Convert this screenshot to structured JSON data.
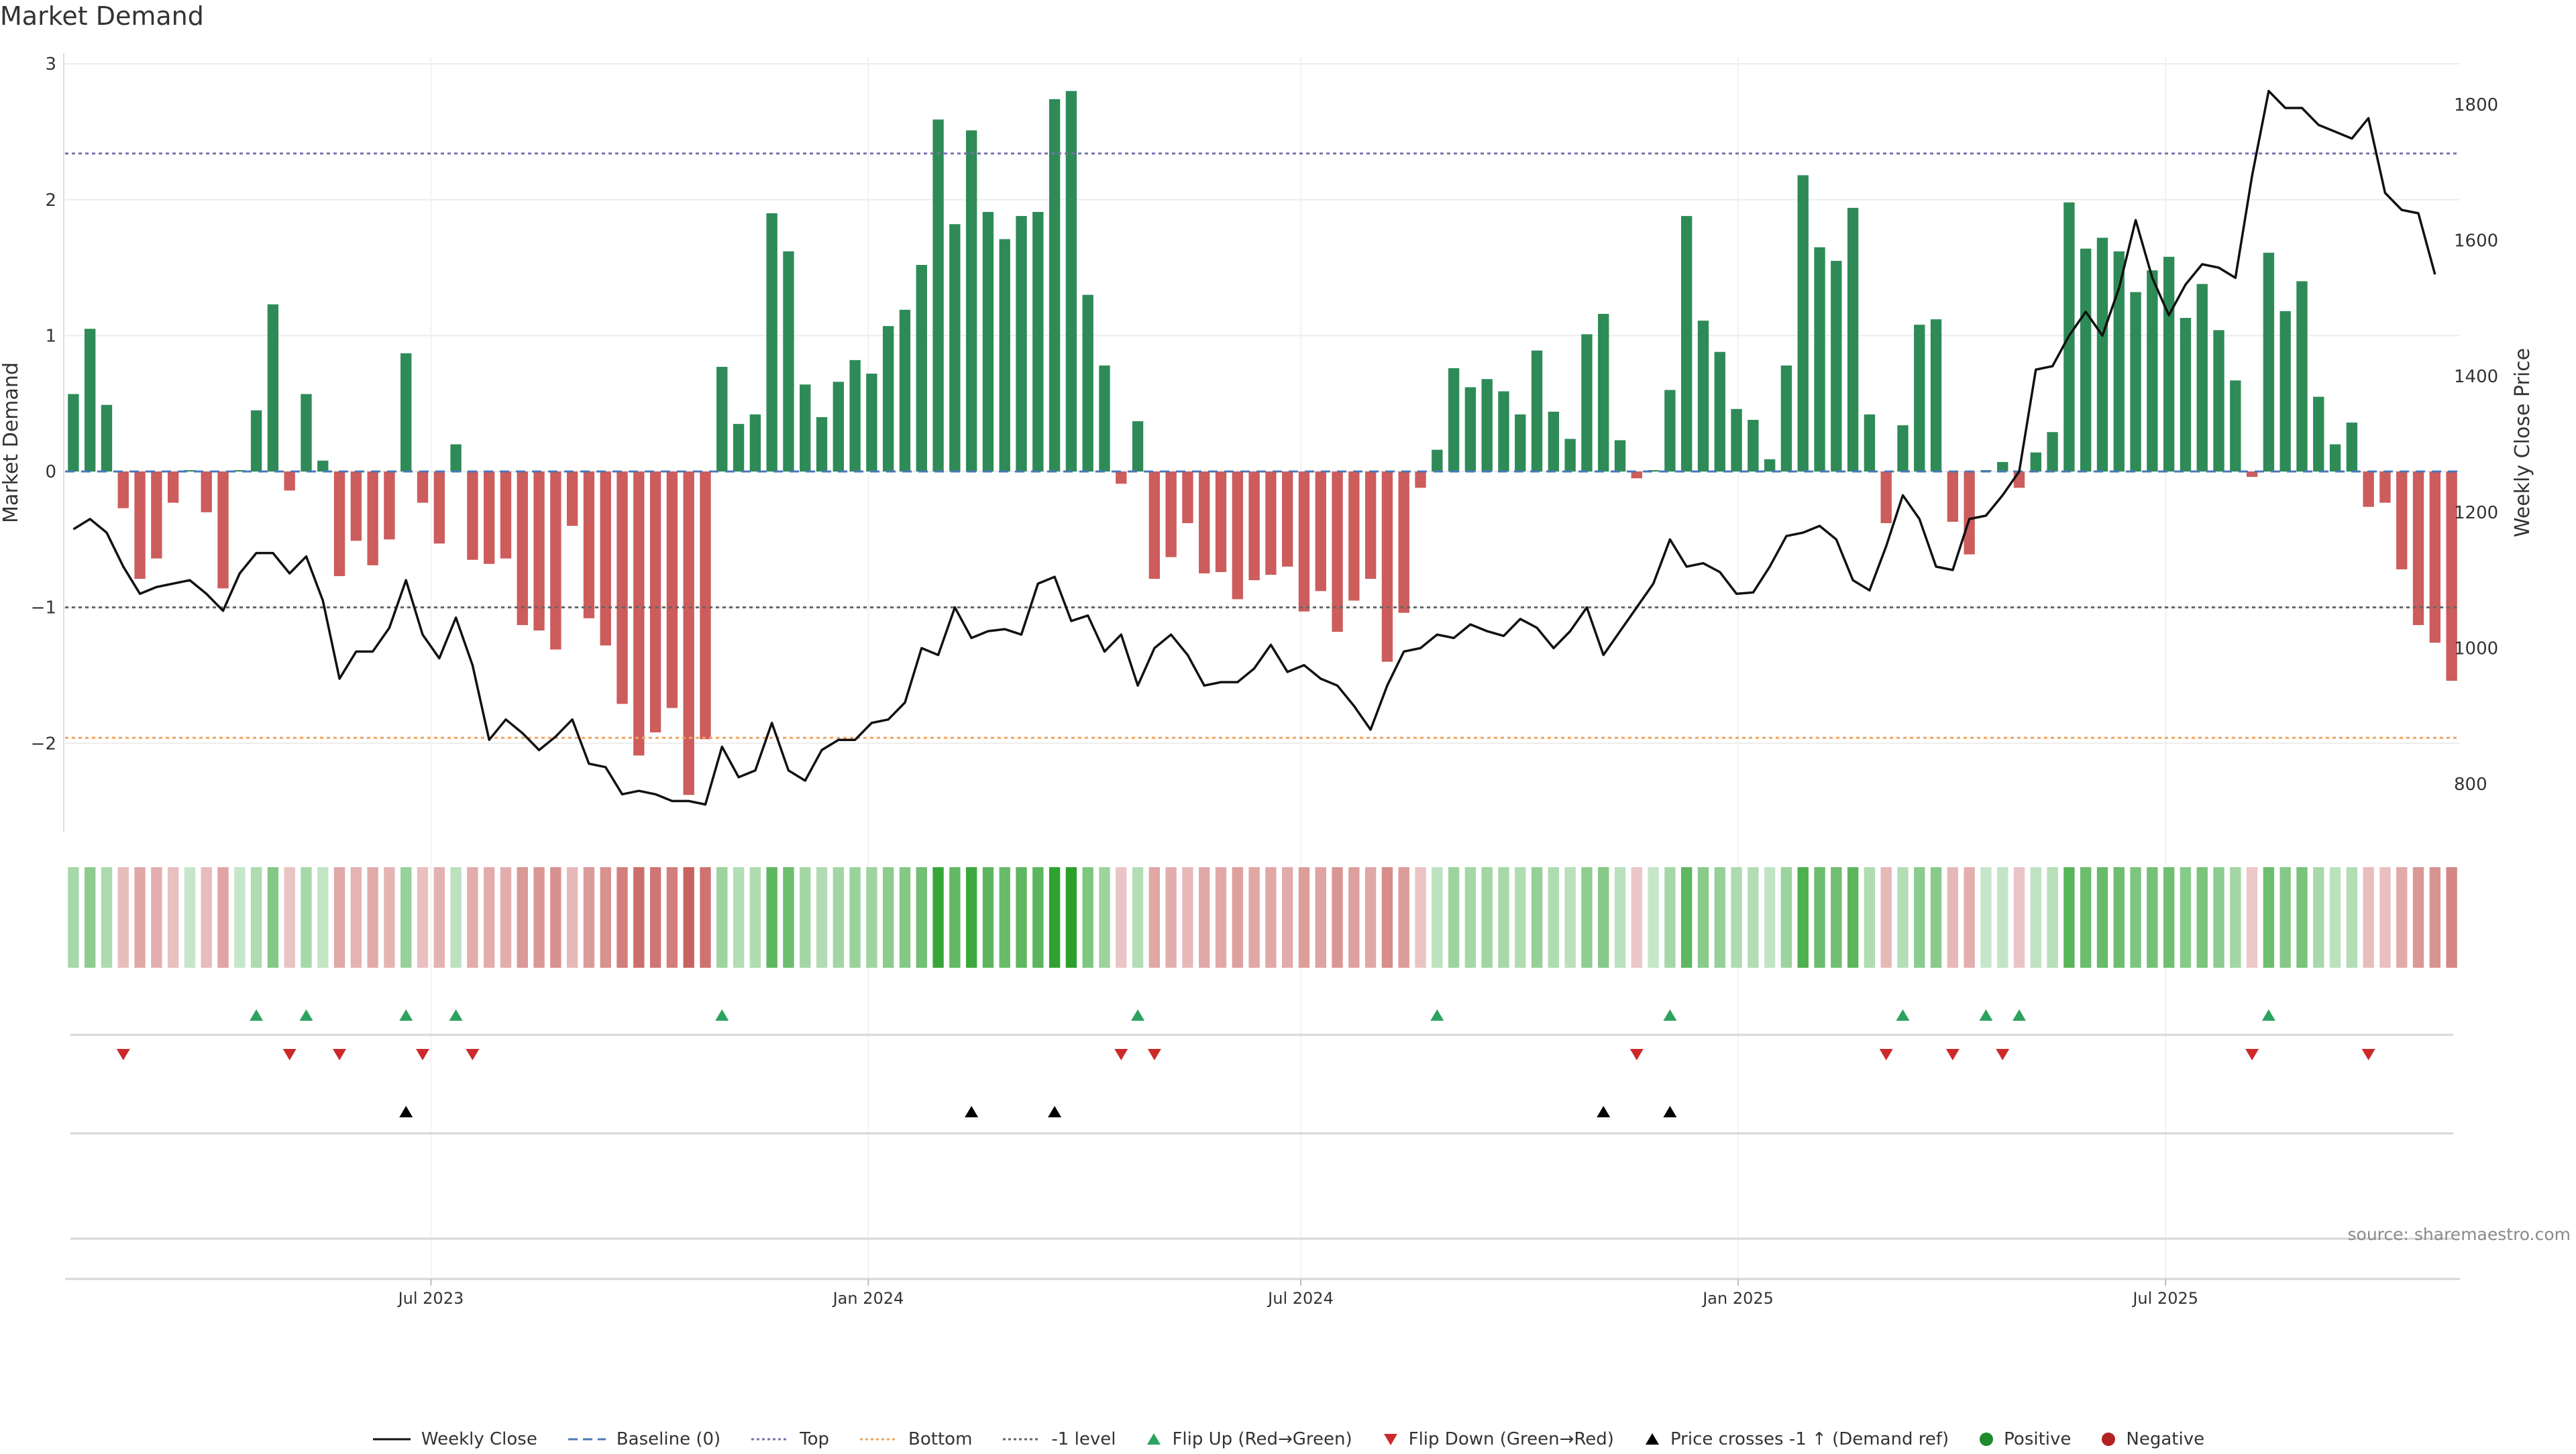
{
  "chart_data": {
    "type": "bar",
    "title": "Market Demand",
    "ylabel": "Market Demand",
    "y2label": "Weekly Close Price",
    "ylim": [
      -2.65,
      3.05
    ],
    "y2lim": [
      730,
      1870
    ],
    "yticks": [
      3,
      2,
      1,
      0,
      -1,
      -2
    ],
    "ytick_labels": [
      "3",
      "2",
      "1",
      "0",
      "−1",
      "−2"
    ],
    "y2ticks": [
      1800,
      1600,
      1400,
      1200,
      1000,
      800
    ],
    "y2tick_labels": [
      "1800",
      "1600",
      "1400",
      "1200",
      "1000",
      "800"
    ],
    "xticks": [
      {
        "label": "Jul 2023",
        "index": 22
      },
      {
        "label": "Jan 2024",
        "index": 48.3
      },
      {
        "label": "Jul 2024",
        "index": 74.3
      },
      {
        "label": "Jan 2025",
        "index": 100.6
      },
      {
        "label": "Jul 2025",
        "index": 126.3
      }
    ],
    "reference_lines": {
      "top": 2.34,
      "bottom": -1.96,
      "minus_one": -1.0,
      "baseline": 0
    },
    "colors": {
      "positive": "#2e8b57",
      "negative": "#cd5c5c",
      "price": "#111111",
      "top_line": "#7b6fb0",
      "bottom_line": "#f0a35e",
      "minus_one_line": "#666666",
      "baseline": "#4a78b8",
      "flip_up": "#2ca25f",
      "flip_down": "#cc2a2a",
      "cross": "#000000"
    },
    "demand": [
      0.57,
      1.05,
      0.49,
      -0.27,
      -0.79,
      -0.64,
      -0.23,
      0.01,
      -0.3,
      -0.86,
      0.01,
      0.45,
      1.23,
      -0.14,
      0.57,
      0.08,
      -0.77,
      -0.51,
      -0.69,
      -0.5,
      0.87,
      -0.23,
      -0.53,
      0.2,
      -0.65,
      -0.68,
      -0.64,
      -1.13,
      -1.17,
      -1.31,
      -0.4,
      -1.08,
      -1.28,
      -1.71,
      -2.09,
      -1.92,
      -1.74,
      -2.38,
      -1.97,
      0.77,
      0.35,
      0.42,
      1.9,
      1.62,
      0.64,
      0.4,
      0.66,
      0.82,
      0.72,
      1.07,
      1.19,
      1.52,
      2.59,
      1.82,
      2.51,
      1.91,
      1.71,
      1.88,
      1.91,
      2.74,
      2.8,
      1.3,
      0.78,
      -0.09,
      0.37,
      -0.79,
      -0.63,
      -0.38,
      -0.75,
      -0.74,
      -0.94,
      -0.8,
      -0.76,
      -0.7,
      -1.03,
      -0.88,
      -1.18,
      -0.95,
      -0.79,
      -1.4,
      -1.04,
      -0.12,
      0.16,
      0.76,
      0.62,
      0.68,
      0.59,
      0.42,
      0.89,
      0.44,
      0.24,
      1.01,
      1.16,
      0.23,
      -0.05,
      0.01,
      0.6,
      1.88,
      1.11,
      0.88,
      0.46,
      0.38,
      0.09,
      0.78,
      2.18,
      1.65,
      1.55,
      1.94,
      0.42,
      -0.38,
      0.34,
      1.08,
      1.12,
      -0.37,
      -0.61,
      0.01,
      0.07,
      -0.12,
      0.14,
      0.29,
      1.98,
      1.64,
      1.72,
      1.62,
      1.32,
      1.48,
      1.58,
      1.13,
      1.38,
      1.04,
      0.67,
      -0.04,
      1.61,
      1.18,
      1.4,
      0.55,
      0.2,
      0.36,
      -0.26,
      -0.23,
      -0.72,
      -1.13,
      -1.26,
      -1.54
    ],
    "price": [
      1175,
      1190,
      1170,
      1120,
      1080,
      1090,
      1095,
      1100,
      1080,
      1055,
      1110,
      1140,
      1140,
      1110,
      1135,
      1070,
      955,
      995,
      995,
      1030,
      1100,
      1020,
      985,
      1045,
      975,
      865,
      895,
      875,
      850,
      870,
      895,
      830,
      825,
      785,
      790,
      785,
      775,
      775,
      770,
      855,
      810,
      820,
      890,
      820,
      805,
      850,
      865,
      865,
      890,
      895,
      920,
      1000,
      990,
      1060,
      1015,
      1025,
      1028,
      1020,
      1095,
      1105,
      1040,
      1048,
      995,
      1020,
      945,
      1000,
      1020,
      990,
      945,
      950,
      950,
      970,
      1005,
      965,
      975,
      955,
      945,
      915,
      880,
      945,
      995,
      1000,
      1020,
      1015,
      1035,
      1025,
      1018,
      1043,
      1030,
      1000,
      1025,
      1060,
      990,
      1025,
      1060,
      1095,
      1160,
      1120,
      1125,
      1112,
      1080,
      1082,
      1120,
      1165,
      1170,
      1180,
      1160,
      1100,
      1085,
      1150,
      1225,
      1190,
      1120,
      1115,
      1190,
      1195,
      1225,
      1260,
      1410,
      1415,
      1460,
      1495,
      1460,
      1530,
      1630,
      1545,
      1490,
      1535,
      1565,
      1560,
      1545,
      1695,
      1820,
      1795,
      1795,
      1770,
      1760,
      1750,
      1780,
      1670,
      1645,
      1640,
      1550
    ],
    "flip_up": [
      11,
      14,
      20,
      23,
      39,
      64,
      82,
      96,
      110,
      115,
      117,
      132
    ],
    "flip_down": [
      3,
      13,
      16,
      21,
      24,
      63,
      65,
      94,
      109,
      113,
      116,
      131,
      138
    ],
    "price_cross": [
      20,
      54,
      59,
      92,
      96
    ],
    "source": "source: sharemaestro.com",
    "legend": [
      {
        "label": "Weekly Close",
        "marker": "solid-line"
      },
      {
        "label": "Baseline (0)",
        "marker": "dashed-line"
      },
      {
        "label": "Top",
        "marker": "dotted-line-purple"
      },
      {
        "label": "Bottom",
        "marker": "dotted-line-orange"
      },
      {
        "label": "-1 level",
        "marker": "dotted-line-gray"
      },
      {
        "label": "Flip Up (Red→Green)",
        "marker": "triangle-up-green"
      },
      {
        "label": "Flip Down (Green→Red)",
        "marker": "triangle-down-red"
      },
      {
        "label": "Price crosses -1 ↑ (Demand ref)",
        "marker": "triangle-up-black"
      },
      {
        "label": "Positive",
        "marker": "dot-green"
      },
      {
        "label": "Negative",
        "marker": "dot-red"
      }
    ]
  }
}
